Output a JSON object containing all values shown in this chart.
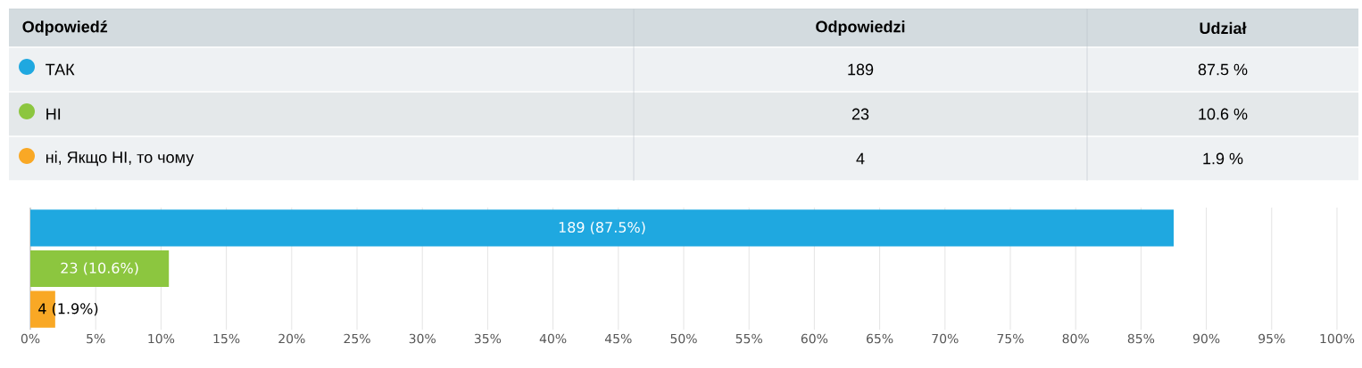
{
  "chart_data": [
    {
      "type": "other",
      "annotations": [
        "Odpowiedź",
        "Odpowiedzi",
        "Udział",
        "189",
        "87.5 %",
        "23",
        "10.6 %",
        "4",
        "1.9 %"
      ],
      "categories": [
        "ТАК",
        "НІ",
        "ні, Якщо НІ, то чому"
      ],
      "colors": [
        "#1fa8e0",
        "#8cc63f",
        "#f9a825"
      ]
    },
    {
      "type": "bar",
      "orientation": "horizontal",
      "categories": [
        null,
        null,
        null
      ],
      "values": [
        87.5,
        10.6,
        1.9
      ],
      "value_labels": [
        "189 (87.5%)",
        "23 (10.6%)",
        "4 (1.9%)"
      ],
      "colors": [
        "#1fa8e0",
        "#8cc63f",
        "#f9a825"
      ],
      "xlim": [
        0,
        100
      ],
      "xticks": [
        {
          "value": 0,
          "label": "0%"
        },
        {
          "value": 5,
          "label": "5%"
        },
        {
          "value": 10,
          "label": "10%"
        },
        {
          "value": 15,
          "label": "15%"
        },
        {
          "value": 20,
          "label": "20%"
        },
        {
          "value": 25,
          "label": "25%"
        },
        {
          "value": 30,
          "label": "30%"
        },
        {
          "value": 35,
          "label": "35%"
        },
        {
          "value": 40,
          "label": "40%"
        },
        {
          "value": 45,
          "label": "45%"
        },
        {
          "value": 50,
          "label": "50%"
        },
        {
          "value": 55,
          "label": "55%"
        },
        {
          "value": 60,
          "label": "60%"
        },
        {
          "value": 65,
          "label": "65%"
        },
        {
          "value": 70,
          "label": "70%"
        },
        {
          "value": 75,
          "label": "75%"
        },
        {
          "value": 80,
          "label": "80%"
        },
        {
          "value": 85,
          "label": "85%"
        },
        {
          "value": 90,
          "label": "90%"
        },
        {
          "value": 95,
          "label": "95%"
        },
        {
          "value": 100,
          "label": "100%"
        }
      ],
      "grid": "x"
    }
  ]
}
